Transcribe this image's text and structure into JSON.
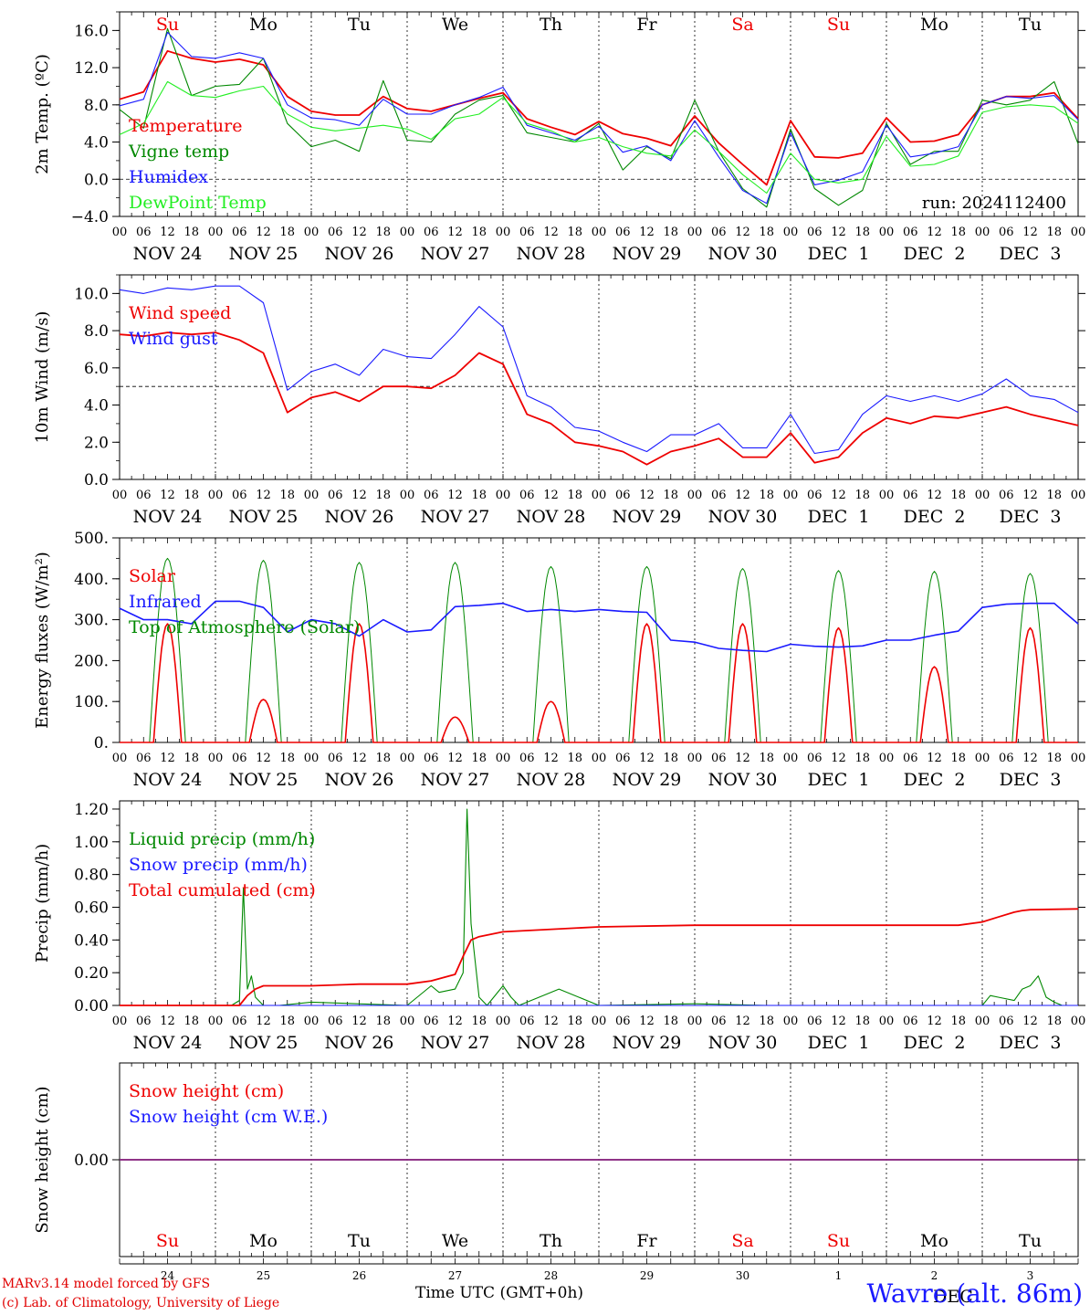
{
  "colors": {
    "red": "#ee0000",
    "green": "#008800",
    "blue": "#1a1aff",
    "lightgreen": "#22ee22",
    "black": "#000000",
    "grid": "#000000"
  },
  "day_labels": [
    "NOV 24",
    "NOV 25",
    "NOV 26",
    "NOV 27",
    "NOV 28",
    "NOV 29",
    "NOV 30",
    "DEC  1",
    "DEC  2",
    "DEC  3"
  ],
  "weekday_labels": [
    {
      "text": "Su",
      "color": "red"
    },
    {
      "text": "Mo",
      "color": "black"
    },
    {
      "text": "Tu",
      "color": "black"
    },
    {
      "text": "We",
      "color": "black"
    },
    {
      "text": "Th",
      "color": "black"
    },
    {
      "text": "Fr",
      "color": "black"
    },
    {
      "text": "Sa",
      "color": "red"
    },
    {
      "text": "Su",
      "color": "red"
    },
    {
      "text": "Mo",
      "color": "black"
    },
    {
      "text": "Tu",
      "color": "black"
    }
  ],
  "hour_ticks": [
    "00",
    "06",
    "12",
    "18"
  ],
  "hour_end": "00",
  "bottom_day_numbers": [
    "24",
    "25",
    "26",
    "27",
    "28",
    "29",
    "30",
    "1",
    "2",
    "3"
  ],
  "month_break_label": "DEC",
  "chart_data": [
    {
      "type": "line",
      "panel": "temperature",
      "ylabel": "2m Temp. (ºC)",
      "ylim": [
        -4,
        18
      ],
      "yticks": [
        "16.0",
        "12.0",
        "8.0",
        "4.0",
        "0.0",
        "−4.0"
      ],
      "ytick_values": [
        16,
        12,
        8,
        4,
        0,
        -4
      ],
      "reference_line": 0,
      "annotation": "run: 2024112400",
      "x_hours": [
        0,
        6,
        12,
        18,
        24,
        30,
        36,
        42,
        48,
        54,
        60,
        66,
        72,
        78,
        84,
        90,
        96,
        102,
        108,
        114,
        120,
        126,
        132,
        138,
        144,
        150,
        156,
        162,
        168,
        174,
        180,
        186,
        192,
        198,
        204,
        210,
        216,
        222,
        228,
        234,
        240
      ],
      "series": [
        {
          "name": "Temperature",
          "color": "red",
          "values": [
            8.6,
            9.4,
            13.8,
            13.0,
            12.6,
            12.9,
            12.3,
            8.9,
            7.3,
            6.9,
            6.9,
            8.9,
            7.6,
            7.3,
            8.0,
            8.7,
            9.3,
            6.5,
            5.6,
            4.8,
            6.2,
            4.9,
            4.4,
            3.6,
            6.8,
            3.9,
            1.6,
            -0.6,
            6.3,
            2.4,
            2.3,
            2.8,
            6.6,
            4.0,
            4.1,
            4.8,
            8.0,
            8.9,
            8.9,
            9.3,
            6.5
          ]
        },
        {
          "name": "Vigne temp",
          "color": "green",
          "values": [
            7.5,
            5.5,
            16.2,
            9.0,
            10.0,
            10.2,
            13.0,
            6.0,
            3.5,
            4.2,
            3.0,
            10.6,
            4.2,
            4.0,
            7.0,
            8.5,
            9.0,
            5.0,
            4.5,
            4.0,
            6.0,
            1.0,
            3.5,
            2.2,
            8.5,
            3.0,
            -1.0,
            -3.0,
            5.4,
            -1.0,
            -2.8,
            -1.2,
            6.0,
            1.6,
            3.0,
            3.0,
            8.5,
            8.0,
            8.5,
            10.5,
            3.8
          ]
        },
        {
          "name": "Humidex",
          "color": "blue",
          "values": [
            7.9,
            8.6,
            15.8,
            13.2,
            13.0,
            13.6,
            13.0,
            8.0,
            6.6,
            6.4,
            5.8,
            8.6,
            7.0,
            7.0,
            8.0,
            8.8,
            9.9,
            5.8,
            5.0,
            4.2,
            5.7,
            2.9,
            3.6,
            2.0,
            6.3,
            2.4,
            -1.2,
            -2.6,
            5.0,
            -0.6,
            -0.1,
            0.8,
            5.8,
            2.4,
            2.8,
            3.5,
            8.0,
            8.9,
            8.7,
            9.0,
            6.4
          ]
        },
        {
          "name": "DewPoint Temp",
          "color": "lightgreen",
          "values": [
            4.8,
            6.0,
            10.5,
            9.0,
            8.8,
            9.5,
            10.0,
            7.0,
            5.6,
            5.2,
            5.5,
            5.8,
            5.4,
            4.3,
            6.5,
            7.0,
            8.8,
            6.0,
            5.2,
            4.0,
            4.5,
            3.5,
            2.8,
            2.5,
            5.3,
            3.0,
            0.5,
            -1.5,
            2.8,
            0.0,
            -0.4,
            0.0,
            4.6,
            1.4,
            1.6,
            2.5,
            7.2,
            7.8,
            8.0,
            7.8,
            6.0
          ]
        }
      ]
    },
    {
      "type": "line",
      "panel": "wind",
      "ylabel": "10m Wind (m/s)",
      "ylim": [
        0,
        11
      ],
      "yticks": [
        "10.0",
        "8.0",
        "6.0",
        "4.0",
        "2.0",
        "0.0"
      ],
      "ytick_values": [
        10,
        8,
        6,
        4,
        2,
        0
      ],
      "reference_line": 5,
      "x_hours": [
        0,
        6,
        12,
        18,
        24,
        30,
        36,
        42,
        48,
        54,
        60,
        66,
        72,
        78,
        84,
        90,
        96,
        102,
        108,
        114,
        120,
        126,
        132,
        138,
        144,
        150,
        156,
        162,
        168,
        174,
        180,
        186,
        192,
        198,
        204,
        210,
        216,
        222,
        228,
        234,
        240
      ],
      "series": [
        {
          "name": "Wind speed",
          "color": "red",
          "values": [
            7.8,
            7.7,
            7.9,
            7.8,
            7.9,
            7.5,
            6.8,
            3.6,
            4.4,
            4.7,
            4.2,
            5.0,
            5.0,
            4.9,
            5.6,
            6.8,
            6.2,
            3.5,
            3.0,
            2.0,
            1.8,
            1.5,
            0.8,
            1.5,
            1.8,
            2.2,
            1.2,
            1.2,
            2.5,
            0.9,
            1.2,
            2.5,
            3.3,
            3.0,
            3.4,
            3.3,
            3.6,
            3.9,
            3.5,
            3.2,
            2.9
          ]
        },
        {
          "name": "Wind gust",
          "color": "blue",
          "values": [
            10.2,
            10.0,
            10.3,
            10.2,
            10.4,
            10.4,
            9.5,
            4.8,
            5.8,
            6.2,
            5.6,
            7.0,
            6.6,
            6.5,
            7.8,
            9.3,
            8.2,
            4.5,
            3.9,
            2.8,
            2.6,
            2.0,
            1.5,
            2.4,
            2.4,
            3.0,
            1.7,
            1.7,
            3.5,
            1.4,
            1.6,
            3.5,
            4.5,
            4.2,
            4.5,
            4.2,
            4.6,
            5.4,
            4.5,
            4.3,
            3.6
          ]
        }
      ]
    },
    {
      "type": "line",
      "panel": "energy",
      "ylabel": "Energy fluxes (W/m²)",
      "ylim": [
        0,
        500
      ],
      "yticks": [
        "500.",
        "400.",
        "300.",
        "200.",
        "100.",
        "0."
      ],
      "ytick_values": [
        500,
        400,
        300,
        200,
        100,
        0
      ],
      "day_peaks": {
        "solar": [
          290,
          105,
          290,
          62,
          100,
          290,
          290,
          280,
          185,
          280
        ],
        "toa": [
          450,
          445,
          440,
          440,
          430,
          430,
          425,
          420,
          418,
          413
        ]
      },
      "series": [
        {
          "name": "Solar",
          "color": "red"
        },
        {
          "name": "Infrared",
          "color": "blue",
          "x_hours": [
            0,
            6,
            12,
            18,
            24,
            30,
            36,
            42,
            48,
            54,
            60,
            66,
            72,
            78,
            84,
            90,
            96,
            102,
            108,
            114,
            120,
            126,
            132,
            138,
            144,
            150,
            156,
            162,
            168,
            174,
            180,
            186,
            192,
            198,
            204,
            210,
            216,
            222,
            228,
            234,
            240
          ],
          "values": [
            328,
            300,
            300,
            290,
            345,
            345,
            330,
            270,
            300,
            290,
            260,
            300,
            270,
            275,
            332,
            335,
            340,
            320,
            325,
            320,
            325,
            320,
            318,
            250,
            245,
            230,
            225,
            222,
            240,
            235,
            233,
            236,
            250,
            250,
            262,
            272,
            330,
            338,
            340,
            340,
            290
          ]
        },
        {
          "name": "Top of Atmosphere (Solar)",
          "color": "green"
        }
      ]
    },
    {
      "type": "line",
      "panel": "precip",
      "ylabel": "Precip (mm/h)",
      "ylim": [
        0,
        1.25
      ],
      "yticks": [
        "1.20",
        "1.00",
        "0.80",
        "0.60",
        "0.40",
        "0.20",
        "0.00"
      ],
      "ytick_values": [
        1.2,
        1.0,
        0.8,
        0.6,
        0.4,
        0.2,
        0.0
      ],
      "series": [
        {
          "name": "Liquid precip (mm/h)",
          "color": "green",
          "x_hours": [
            0,
            24,
            28,
            30,
            31,
            32,
            33,
            34,
            36,
            40,
            48,
            72,
            78,
            80,
            84,
            86,
            87,
            88,
            90,
            92,
            96,
            98,
            100,
            110,
            120,
            144,
            162,
            164,
            166,
            186,
            216,
            218,
            220,
            224,
            226,
            228,
            230,
            232,
            234,
            236,
            240
          ],
          "values": [
            0,
            0,
            0,
            0.03,
            0.72,
            0.1,
            0.18,
            0.05,
            0,
            0,
            0.02,
            0,
            0.12,
            0.08,
            0.1,
            0.2,
            1.2,
            0.5,
            0.05,
            0,
            0.12,
            0.05,
            0,
            0.1,
            0,
            0.01,
            0,
            0,
            0,
            0,
            0,
            0.06,
            0.05,
            0.03,
            0.1,
            0.12,
            0.18,
            0.05,
            0.02,
            0,
            0
          ]
        },
        {
          "name": "Snow precip (mm/h)",
          "color": "blue",
          "x_hours": [
            0,
            240
          ],
          "values": [
            0,
            0
          ]
        },
        {
          "name": "Total cumulated (cm)",
          "color": "red",
          "x_hours": [
            0,
            30,
            32,
            34,
            36,
            48,
            60,
            72,
            78,
            84,
            86,
            88,
            90,
            96,
            120,
            144,
            168,
            192,
            210,
            216,
            220,
            224,
            226,
            228,
            240
          ],
          "values": [
            0,
            0,
            0.06,
            0.1,
            0.12,
            0.12,
            0.13,
            0.13,
            0.15,
            0.19,
            0.3,
            0.4,
            0.42,
            0.45,
            0.48,
            0.49,
            0.49,
            0.49,
            0.49,
            0.51,
            0.54,
            0.57,
            0.58,
            0.585,
            0.59
          ]
        }
      ]
    },
    {
      "type": "line",
      "panel": "snow",
      "ylabel": "Snow height (cm)",
      "ylim": [
        -1,
        1
      ],
      "yticks": [
        "0.00"
      ],
      "ytick_values": [
        0
      ],
      "series": [
        {
          "name": "Snow height (cm)",
          "color": "red",
          "x_hours": [
            0,
            240
          ],
          "values": [
            0,
            0
          ]
        },
        {
          "name": "Snow height (cm W.E.)",
          "color": "blue",
          "x_hours": [
            0,
            240
          ],
          "values": [
            0,
            0
          ]
        }
      ]
    }
  ],
  "footer": {
    "model": "MARv3.14 model forced by GFS",
    "lab": "(c) Lab. of Climatology, University of Liege",
    "x_title": "Time UTC (GMT+0h)",
    "station": "Wavre (alt. 86m)"
  }
}
